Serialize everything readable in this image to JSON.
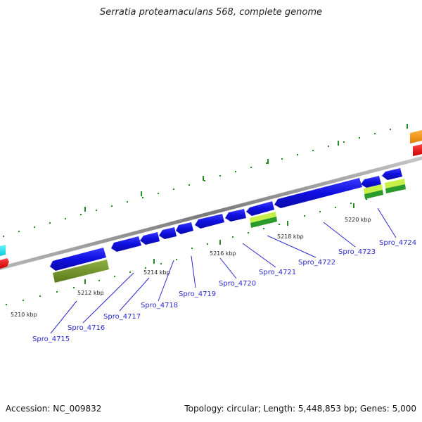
{
  "title": "Serratia proteamaculans 568, complete genome",
  "footer": {
    "accession": "Accession: NC_009832",
    "summary": "Topology: circular; Length: 5,448,853 bp; Genes: 5,000"
  },
  "colors": {
    "cds_blue": "#1414e6",
    "olive": "#6b8e23",
    "light_green": "#9acd32",
    "dark_green": "#1a8a1a",
    "orange": "#f39c12",
    "red": "#ee1111",
    "cyan": "#22e4f2",
    "backbone": "#888888",
    "label": "#2b2bd0"
  },
  "scale_labels": [
    "5210 kbp",
    "5212 kbp",
    "5214 kbp",
    "5216 kbp",
    "5218 kbp",
    "5220 kbp"
  ],
  "genes": [
    "Spro_4715",
    "Spro_4716",
    "Spro_4717",
    "Spro_4718",
    "Spro_4719",
    "Spro_4720",
    "Spro_4721",
    "Spro_4722",
    "Spro_4723",
    "Spro_4724"
  ]
}
